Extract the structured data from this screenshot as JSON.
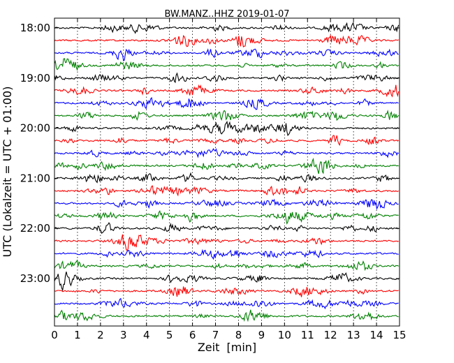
{
  "chart_data": {
    "type": "line",
    "title": "BW.MANZ..HHZ 2019-01-07",
    "xlabel": "Zeit  [min]",
    "ylabel": "UTC (Lokalzeit = UTC + 01:00)",
    "xlim": [
      0,
      15
    ],
    "x_ticks": [
      "0",
      "1",
      "2",
      "3",
      "4",
      "5",
      "6",
      "7",
      "8",
      "9",
      "10",
      "11",
      "12",
      "13",
      "14",
      "15"
    ],
    "y_ticks": [
      "18:00",
      "19:00",
      "20:00",
      "21:00",
      "22:00",
      "23:00"
    ],
    "grid": "vertical dotted",
    "trace_start": "18:00",
    "trace_interval_min": 15,
    "trace_count": 24,
    "trace_colors": [
      "#000000",
      "#ff0000",
      "#0000ff",
      "#008000"
    ]
  }
}
